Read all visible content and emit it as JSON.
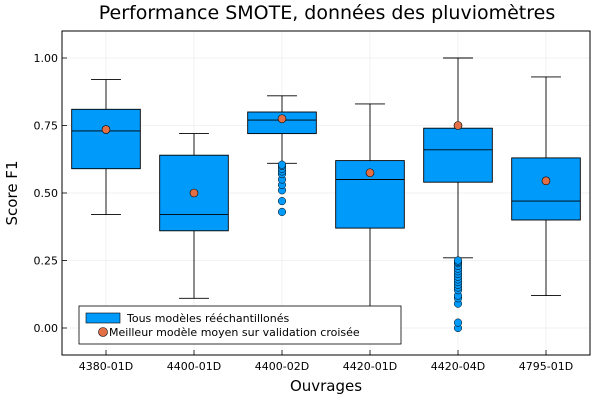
{
  "chart_data": {
    "type": "box",
    "title": "Performance SMOTE, données des pluviomètres",
    "xlabel": "Ouvrages",
    "ylabel": "Score F1",
    "ylim": [
      -0.1,
      1.1
    ],
    "yticks": [
      0.0,
      0.25,
      0.5,
      0.75,
      1.0
    ],
    "ytick_labels": [
      "0.00",
      "0.25",
      "0.50",
      "0.75",
      "1.00"
    ],
    "grid": true,
    "legend_position": "bottom-left",
    "categories": [
      "4380-01D",
      "4400-01D",
      "4400-02D",
      "4420-01D",
      "4420-04D",
      "4795-01D"
    ],
    "series": [
      {
        "name": "Tous modèles rééchantillonés",
        "color": "#009AFA",
        "boxes": [
          {
            "whisker_low": 0.42,
            "q1": 0.59,
            "median": 0.73,
            "q3": 0.81,
            "whisker_high": 0.92,
            "outliers": []
          },
          {
            "whisker_low": 0.11,
            "q1": 0.36,
            "median": 0.42,
            "q3": 0.64,
            "whisker_high": 0.72,
            "outliers": []
          },
          {
            "whisker_low": 0.61,
            "q1": 0.72,
            "median": 0.77,
            "q3": 0.8,
            "whisker_high": 0.86,
            "outliers": [
              0.43,
              0.47,
              0.51,
              0.53,
              0.55,
              0.57,
              0.58,
              0.59,
              0.6,
              0.605
            ]
          },
          {
            "whisker_low": 0.08,
            "q1": 0.37,
            "median": 0.55,
            "q3": 0.62,
            "whisker_high": 0.83,
            "outliers": []
          },
          {
            "whisker_low": 0.26,
            "q1": 0.54,
            "median": 0.66,
            "q3": 0.74,
            "whisker_high": 1.0,
            "outliers": [
              0.0,
              0.02,
              0.09,
              0.11,
              0.12,
              0.14,
              0.15,
              0.16,
              0.17,
              0.18,
              0.19,
              0.2,
              0.21,
              0.22,
              0.23,
              0.24,
              0.245,
              0.25
            ]
          },
          {
            "whisker_low": 0.12,
            "q1": 0.4,
            "median": 0.47,
            "q3": 0.63,
            "whisker_high": 0.93,
            "outliers": []
          }
        ]
      },
      {
        "name": "Meilleur modèle moyen sur validation croisée",
        "color": "#E26F46",
        "values": [
          0.735,
          0.5,
          0.775,
          0.575,
          0.75,
          0.545
        ]
      }
    ]
  }
}
